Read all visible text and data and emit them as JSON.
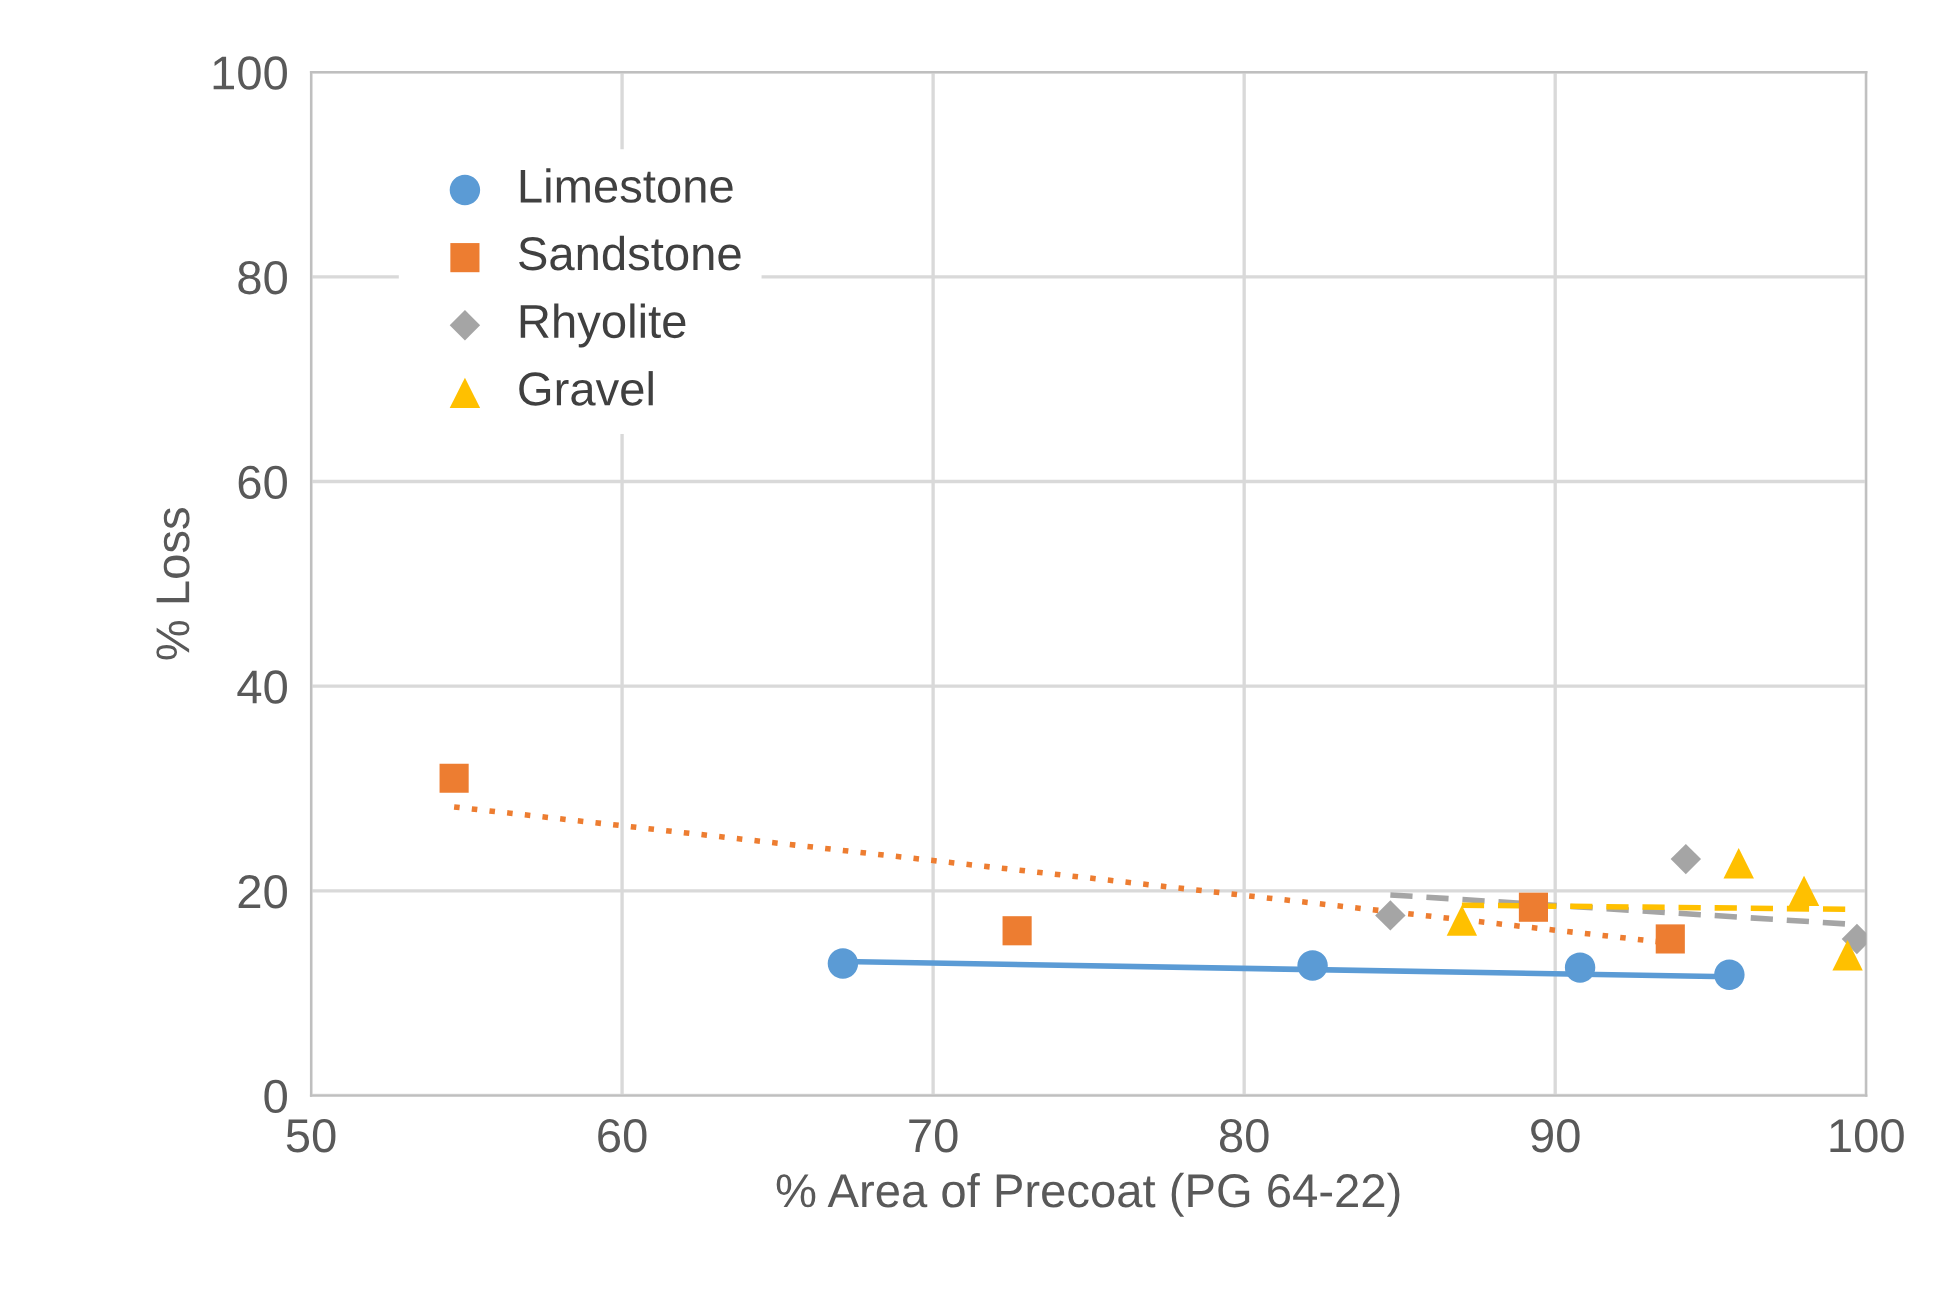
{
  "chart_data": {
    "type": "scatter",
    "xlabel": "% Area of Precoat (PG 64-22)",
    "ylabel": "% Loss",
    "xlim": [
      50,
      100
    ],
    "xticks": [
      50,
      60,
      70,
      80,
      90,
      100
    ],
    "ylim": [
      0,
      100
    ],
    "yticks": [
      0,
      20,
      40,
      60,
      80,
      100
    ],
    "grid": true,
    "legend": "top left",
    "series": [
      {
        "name": "Limestone",
        "color": "#5b9bd5",
        "marker": "circle",
        "x": [
          67.1,
          82.2,
          90.8,
          95.6
        ],
        "values": [
          12.9,
          12.7,
          12.5,
          11.8
        ]
      },
      {
        "name": "Sandstone",
        "color": "#ed7d31",
        "marker": "square",
        "x": [
          54.6,
          72.7,
          89.3,
          93.7
        ],
        "values": [
          31.0,
          16.1,
          18.4,
          15.3
        ]
      },
      {
        "name": "Rhyolite",
        "color": "#a5a5a5",
        "marker": "diamond",
        "x": [
          84.7,
          94.2,
          99.7
        ],
        "values": [
          17.6,
          23.1,
          15.3
        ]
      },
      {
        "name": "Gravel",
        "color": "#ffc000",
        "marker": "triangle",
        "x": [
          87.0,
          95.9,
          98.0,
          99.4
        ],
        "values": [
          17.1,
          22.7,
          20.0,
          13.7
        ]
      },
      {
        "type": "line",
        "color": "#5b9bd5",
        "line_style": "solid",
        "x": [
          67.1,
          95.6
        ],
        "values": [
          13.1,
          11.6
        ]
      },
      {
        "type": "line",
        "color": "#ed7d31",
        "line_style": "dotted",
        "x": [
          54.6,
          93.7
        ],
        "values": [
          28.2,
          14.9
        ]
      },
      {
        "type": "line",
        "color": "#a5a5a5",
        "line_style": "dashed",
        "x": [
          84.7,
          99.7
        ],
        "values": [
          19.6,
          16.7
        ]
      },
      {
        "type": "line",
        "color": "#ffc000",
        "line_style": "dashed",
        "x": [
          87.0,
          99.4
        ],
        "values": [
          18.6,
          18.2
        ]
      }
    ]
  }
}
